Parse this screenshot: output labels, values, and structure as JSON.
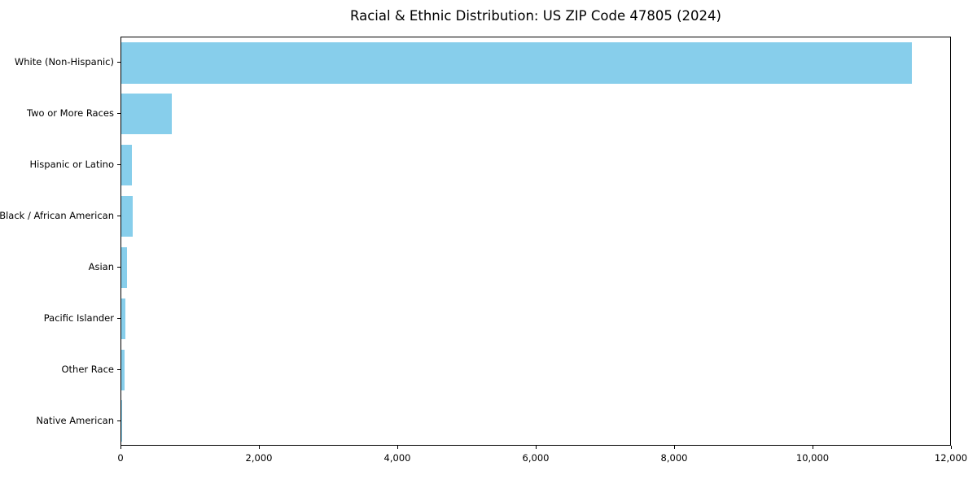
{
  "title": "Racial & Ethnic Distribution: US ZIP Code 47805 (2024)",
  "chart_data": {
    "type": "bar",
    "orientation": "horizontal",
    "title": "Racial & Ethnic Distribution: US ZIP Code 47805 (2024)",
    "categories": [
      "White (Non-Hispanic)",
      "Two or More Races",
      "Hispanic or Latino",
      "Black / African American",
      "Asian",
      "Pacific Islander",
      "Other Race",
      "Native American"
    ],
    "values": [
      11420,
      730,
      155,
      160,
      85,
      60,
      45,
      8
    ],
    "bar_color": "#87CEEB",
    "xlabel": "",
    "ylabel": "",
    "xlim": [
      0,
      12000
    ],
    "x_ticks": [
      0,
      2000,
      4000,
      6000,
      8000,
      10000,
      12000
    ],
    "x_tick_labels": [
      "0",
      "2,000",
      "4,000",
      "6,000",
      "8,000",
      "10,000",
      "12,000"
    ],
    "grid": false,
    "legend": "none",
    "spine_color": "#000000",
    "background_color": "#ffffff"
  }
}
